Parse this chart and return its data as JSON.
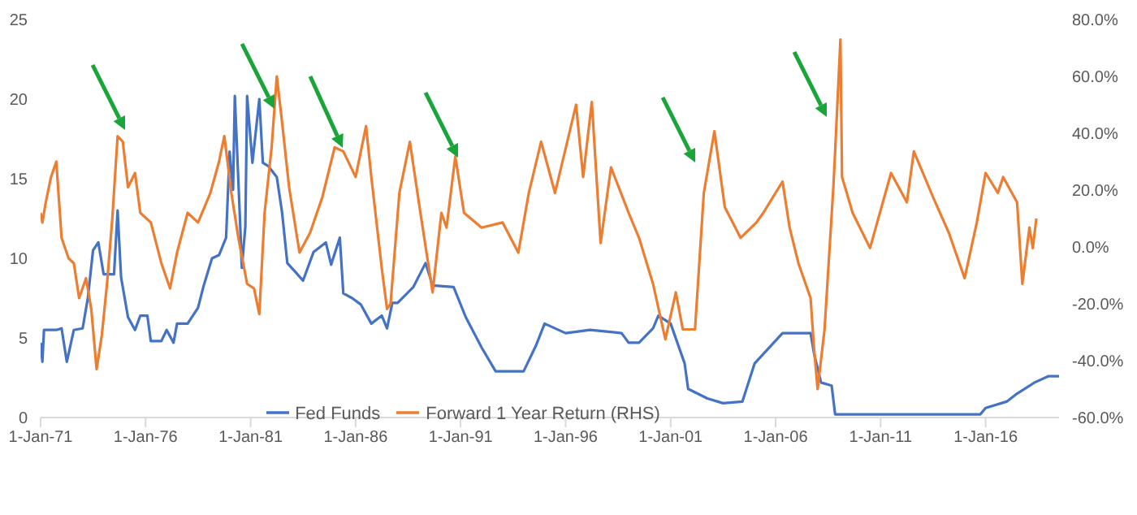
{
  "chart_data": {
    "type": "line",
    "legend": "bottom",
    "grid": false,
    "xlim": [
      "1971-01-01",
      "2019-07-01"
    ],
    "xticks": [
      {
        "value": "1971-01-01",
        "label": "1-Jan-71"
      },
      {
        "value": "1976-01-01",
        "label": "1-Jan-76"
      },
      {
        "value": "1981-01-01",
        "label": "1-Jan-81"
      },
      {
        "value": "1986-01-01",
        "label": "1-Jan-86"
      },
      {
        "value": "1991-01-01",
        "label": "1-Jan-91"
      },
      {
        "value": "1996-01-01",
        "label": "1-Jan-96"
      },
      {
        "value": "2001-01-01",
        "label": "1-Jan-01"
      },
      {
        "value": "2006-01-01",
        "label": "1-Jan-06"
      },
      {
        "value": "2011-01-01",
        "label": "1-Jan-11"
      },
      {
        "value": "2016-01-01",
        "label": "1-Jan-16"
      }
    ],
    "ylim": [
      0,
      25
    ],
    "yticks": [
      0,
      5,
      10,
      15,
      20,
      25
    ],
    "y2lim": [
      -60,
      80
    ],
    "y2ticks": [
      {
        "value": -60,
        "label": "-60.0%"
      },
      {
        "value": -40,
        "label": "-40.0%"
      },
      {
        "value": -20,
        "label": "-20.0%"
      },
      {
        "value": 0,
        "label": "0.0%"
      },
      {
        "value": 20,
        "label": "20.0%"
      },
      {
        "value": 40,
        "label": "40.0%"
      },
      {
        "value": 60,
        "label": "60.0%"
      },
      {
        "value": 80,
        "label": "80.0%"
      }
    ],
    "series": [
      {
        "name": "Fed Funds",
        "color": "#4472c4",
        "x": [
          "1971-01",
          "1971-02",
          "1971-03",
          "1971-10",
          "1972-01",
          "1972-04",
          "1972-08",
          "1973-01",
          "1973-04",
          "1973-07",
          "1973-10",
          "1974-01",
          "1974-07",
          "1974-09",
          "1974-11",
          "1975-03",
          "1975-07",
          "1975-10",
          "1976-02",
          "1976-04",
          "1976-10",
          "1977-01",
          "1977-05",
          "1977-07",
          "1978-01",
          "1978-07",
          "1978-10",
          "1979-03",
          "1979-07",
          "1979-11",
          "1980-01",
          "1980-03",
          "1980-04",
          "1980-07",
          "1980-08",
          "1980-10",
          "1980-11",
          "1981-02",
          "1981-06",
          "1981-08",
          "1981-11",
          "1982-04",
          "1982-07",
          "1982-10",
          "1983-03",
          "1983-07",
          "1984-01",
          "1984-08",
          "1984-11",
          "1985-04",
          "1985-06",
          "1985-11",
          "1986-04",
          "1986-10",
          "1987-04",
          "1987-07",
          "1987-10",
          "1988-01",
          "1988-10",
          "1989-05",
          "1989-09",
          "1990-09",
          "1991-04",
          "1992-01",
          "1992-09",
          "1994-01",
          "1994-08",
          "1995-01",
          "1996-01",
          "1997-03",
          "1998-09",
          "1999-01",
          "1999-07",
          "2000-03",
          "2000-06",
          "2001-01",
          "2001-09",
          "2001-11",
          "2002-10",
          "2003-07",
          "2004-06",
          "2005-01",
          "2006-05",
          "2007-09",
          "2007-11",
          "2008-03",
          "2008-09",
          "2008-11",
          "2015-10",
          "2016-01",
          "2017-01",
          "2017-07",
          "2018-05",
          "2019-01",
          "2019-07"
        ],
        "values": [
          4.7,
          3.5,
          5.5,
          5.5,
          5.6,
          3.5,
          5.5,
          5.6,
          7.5,
          10.5,
          11,
          9,
          9,
          13,
          8.8,
          6.3,
          5.5,
          6.4,
          6.4,
          4.8,
          4.8,
          5.5,
          4.7,
          5.9,
          5.9,
          6.9,
          8.2,
          10,
          10.2,
          11.3,
          16.7,
          14.3,
          20.2,
          12.3,
          9.4,
          12,
          20.2,
          16,
          20,
          16,
          15.8,
          15.1,
          12.9,
          9.7,
          9.1,
          8.6,
          10.4,
          11,
          9.6,
          11.3,
          7.8,
          7.5,
          7.1,
          5.9,
          6.4,
          5.6,
          7.2,
          7.2,
          8.2,
          9.7,
          8.3,
          8.2,
          6.3,
          4.4,
          2.9,
          2.9,
          4.5,
          5.9,
          5.3,
          5.5,
          5.3,
          4.7,
          4.7,
          5.6,
          6.4,
          5.9,
          3.4,
          1.8,
          1.2,
          0.9,
          1,
          3.4,
          5.3,
          5.3,
          4,
          2.2,
          2,
          0.2,
          0.2,
          0.6,
          1,
          1.5,
          2.2,
          2.6,
          2.6
        ]
      },
      {
        "name": "Forward 1 Year Return (RHS)",
        "color": "#ed7d31",
        "axis": "y2",
        "x": [
          "1971-01",
          "1971-02",
          "1971-04",
          "1971-07",
          "1971-10",
          "1972-01",
          "1972-05",
          "1972-08",
          "1972-11",
          "1973-03",
          "1973-06",
          "1973-09",
          "1973-12",
          "1974-03",
          "1974-06",
          "1974-09",
          "1974-12",
          "1975-03",
          "1975-07",
          "1975-10",
          "1976-04",
          "1976-10",
          "1977-03",
          "1977-07",
          "1978-01",
          "1978-07",
          "1979-02",
          "1979-07",
          "1979-10",
          "1980-02",
          "1980-06",
          "1980-11",
          "1981-03",
          "1981-06",
          "1981-09",
          "1982-01",
          "1982-04",
          "1982-07",
          "1982-11",
          "1983-05",
          "1983-11",
          "1984-06",
          "1985-01",
          "1985-06",
          "1986-01",
          "1986-07",
          "1986-10",
          "1987-04",
          "1987-07",
          "1987-09",
          "1988-02",
          "1988-08",
          "1989-02",
          "1989-09",
          "1990-02",
          "1990-05",
          "1990-10",
          "1991-03",
          "1992-01",
          "1993-01",
          "1993-10",
          "1994-04",
          "1994-11",
          "1995-07",
          "1996-07",
          "1996-11",
          "1997-04",
          "1997-09",
          "1998-03",
          "1999-01",
          "1999-07",
          "2000-03",
          "2000-10",
          "2001-04",
          "2001-08",
          "2002-03",
          "2002-08",
          "2003-02",
          "2003-08",
          "2004-05",
          "2005-02",
          "2005-06",
          "2006-05",
          "2006-09",
          "2007-02",
          "2007-09",
          "2007-11",
          "2008-01",
          "2008-05",
          "2008-10",
          "2008-11",
          "2009-02",
          "2009-03",
          "2009-09",
          "2010-07",
          "2011-07",
          "2012-04",
          "2012-08",
          "2013-07",
          "2014-04",
          "2015-01",
          "2015-08",
          "2016-01",
          "2016-08",
          "2016-11",
          "2017-07",
          "2017-10",
          "2018-02",
          "2018-04",
          "2018-06"
        ],
        "values": [
          12,
          8.6,
          15.7,
          24.6,
          30,
          3.2,
          -4,
          -5.7,
          -18,
          -11,
          -22,
          -43,
          -31,
          -13,
          10,
          39,
          37,
          21,
          26,
          12,
          8.6,
          -5.7,
          -14.6,
          -2,
          12,
          8.6,
          19,
          30,
          39,
          19,
          3.2,
          -13,
          -14.6,
          -23.6,
          12,
          35,
          60,
          44,
          21,
          -2,
          5,
          17.5,
          35,
          33.6,
          24.6,
          42.5,
          24.6,
          -7.5,
          -21.8,
          -20,
          19,
          37,
          12,
          -16,
          12,
          6.8,
          31.8,
          12,
          6.8,
          8.6,
          -2,
          19,
          37,
          19,
          50,
          24.6,
          51,
          1.4,
          28,
          12,
          3.2,
          -13,
          -32.5,
          -16,
          -29,
          -29,
          19,
          40.7,
          14,
          3.2,
          8.6,
          12,
          23,
          6.8,
          -5.7,
          -18,
          -36,
          -50,
          -29,
          21,
          33.6,
          73,
          24.6,
          12,
          -0.4,
          26,
          15.7,
          33.6,
          17.5,
          5,
          -11,
          8.6,
          26,
          19,
          24.6,
          15.7,
          -13,
          6.8,
          -0.4,
          10
        ]
      }
    ]
  }
}
